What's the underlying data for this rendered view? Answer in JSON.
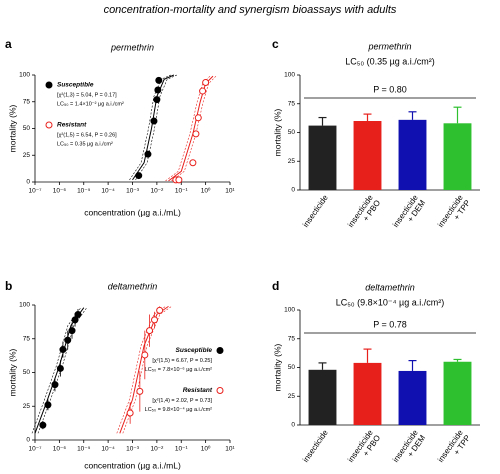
{
  "title": "concentration-mortality and synergism bioassays with adults",
  "chart_data": [
    {
      "type": "scatter",
      "panel": "a",
      "title": "permethrin",
      "xlabel": "concentration (µg a.i./mL)",
      "ylabel": "mortality (%)",
      "xscale": "log",
      "xlim": [
        1e-07,
        10
      ],
      "xticks": [
        {
          "value": 1e-07,
          "label": "10⁻⁷"
        },
        {
          "value": 1e-06,
          "label": "10⁻⁶"
        },
        {
          "value": 1e-05,
          "label": "10⁻⁵"
        },
        {
          "value": 0.0001,
          "label": "10⁻⁴"
        },
        {
          "value": 0.001,
          "label": "10⁻³"
        },
        {
          "value": 0.01,
          "label": "10⁻²"
        },
        {
          "value": 0.1,
          "label": "10⁻¹"
        },
        {
          "value": 1,
          "label": "10⁰"
        },
        {
          "value": 10,
          "label": "10¹"
        }
      ],
      "ylim": [
        0,
        100
      ],
      "yticks": [
        0,
        25,
        50,
        75,
        100
      ],
      "legend": "upper left",
      "series": [
        {
          "name": "Susceptible",
          "color": "#000000",
          "marker": "filled",
          "stats": "[χ²(1,3) = 5.04, P = 0.17]",
          "lc50": "LC₅₀ = 1.4×10⁻² µg a.i./cm²",
          "x": [
            0.0018,
            0.0043,
            0.0076,
            0.01,
            0.011,
            0.012
          ],
          "values": [
            6,
            26,
            57,
            77,
            86,
            95
          ],
          "fit": {
            "x": [
              0.001,
              0.003,
              0.006,
              0.01,
              0.02,
              0.05
            ],
            "y": [
              2,
              18,
              50,
              80,
              96,
              100
            ]
          }
        },
        {
          "name": "Resistant",
          "color": "#e8201c",
          "marker": "open",
          "stats": "[χ²(1,5) = 6.54, P = 0.26]",
          "lc50": "LC₅₀ = 0.35 µg a.i./cm²",
          "x": [
            0.06,
            0.08,
            0.3,
            0.4,
            0.5,
            0.75,
            1.0
          ],
          "values": [
            2,
            2,
            18,
            45,
            60,
            85,
            93
          ],
          "fit": {
            "x": [
              0.03,
              0.1,
              0.3,
              0.6,
              1,
              2
            ],
            "y": [
              1,
              10,
              45,
              75,
              92,
              99
            ]
          }
        }
      ]
    },
    {
      "type": "scatter",
      "panel": "b",
      "title": "deltamethrin",
      "xlabel": "concentration (µg a.i./mL)",
      "ylabel": "mortality (%)",
      "xscale": "log",
      "xlim": [
        1e-07,
        10
      ],
      "xticks": [
        {
          "value": 1e-07,
          "label": "10⁻⁷"
        },
        {
          "value": 1e-06,
          "label": "10⁻⁶"
        },
        {
          "value": 1e-05,
          "label": "10⁻⁵"
        },
        {
          "value": 0.0001,
          "label": "10⁻⁴"
        },
        {
          "value": 0.001,
          "label": "10⁻³"
        },
        {
          "value": 0.01,
          "label": "10⁻²"
        },
        {
          "value": 0.1,
          "label": "10⁻¹"
        },
        {
          "value": 1,
          "label": "10⁰"
        },
        {
          "value": 10,
          "label": "10¹"
        }
      ],
      "ylim": [
        0,
        100
      ],
      "yticks": [
        0,
        25,
        50,
        75,
        100
      ],
      "legend": "center right",
      "series": [
        {
          "name": "Susceptible",
          "color": "#000000",
          "marker": "filled",
          "stats": "[χ²(1,5) = 6.67, P = 0.25]",
          "lc50": "LC₅₀ = 7.8×10⁻⁶ µg a.i./cm²",
          "x": [
            2.1e-07,
            3.4e-07,
            6.6e-07,
            1.1e-06,
            1.4e-06,
            2.2e-06,
            3.3e-06,
            4.4e-06,
            5.8e-06
          ],
          "values": [
            11,
            26,
            41,
            53,
            67,
            74,
            81,
            89,
            93
          ],
          "errors": [
            3,
            4,
            5,
            6,
            6,
            7,
            6,
            5,
            4
          ],
          "fit": {
            "x": [
              1e-07,
              3e-07,
              1e-06,
              3e-06,
              1e-05
            ],
            "y": [
              5,
              28,
              55,
              85,
              98
            ]
          }
        },
        {
          "name": "Resistant",
          "color": "#e8201c",
          "marker": "open",
          "stats": "[χ²(1,4) = 2.02, P = 0.73]",
          "lc50": "LC₅₀ = 9.8×10⁻⁴ µg a.i./cm²",
          "x": [
            0.0008,
            0.002,
            0.0032,
            0.005,
            0.008,
            0.013
          ],
          "values": [
            20,
            36,
            63,
            81,
            89,
            96
          ],
          "errors": [
            8,
            15,
            18,
            12,
            6,
            3
          ],
          "fit": {
            "x": [
              0.0003,
              0.001,
              0.003,
              0.01,
              0.03
            ],
            "y": [
              5,
              30,
              70,
              93,
              99
            ]
          }
        }
      ]
    },
    {
      "type": "bar",
      "panel": "c",
      "title": "permethrin",
      "subtitle": "LC₅₀ (0.35 µg a.i./cm²)",
      "ylabel": "mortality (%)",
      "annotation": "P = 0.80",
      "annotation_y": 80,
      "categories": [
        [
          "insecticide"
        ],
        [
          "insecticide",
          "+ PBO"
        ],
        [
          "insecticide",
          "+ DEM"
        ],
        [
          "insecticide",
          "+ TPP"
        ]
      ],
      "values": [
        56,
        60,
        61,
        58
      ],
      "errors": [
        7,
        6,
        7,
        14
      ],
      "colors": [
        "#222222",
        "#e8201c",
        "#1010b0",
        "#2ec02e"
      ],
      "ylim": [
        0,
        100
      ],
      "yticks": [
        0,
        25,
        50,
        75,
        100
      ]
    },
    {
      "type": "bar",
      "panel": "d",
      "title": "deltamethrin",
      "subtitle": "LC₅₀ (9.8×10⁻⁴ µg a.i./cm²)",
      "ylabel": "mortality (%)",
      "annotation": "P = 0.78",
      "annotation_y": 80,
      "categories": [
        [
          "insecticide"
        ],
        [
          "insecticide",
          "+ PBO"
        ],
        [
          "insecticide",
          "+ DEM"
        ],
        [
          "insecticide",
          "+ TPP"
        ]
      ],
      "values": [
        48,
        54,
        47,
        55
      ],
      "errors": [
        6,
        12,
        9,
        2
      ],
      "colors": [
        "#222222",
        "#e8201c",
        "#1010b0",
        "#2ec02e"
      ],
      "ylim": [
        0,
        100
      ],
      "yticks": [
        0,
        25,
        50,
        75,
        100
      ]
    }
  ]
}
